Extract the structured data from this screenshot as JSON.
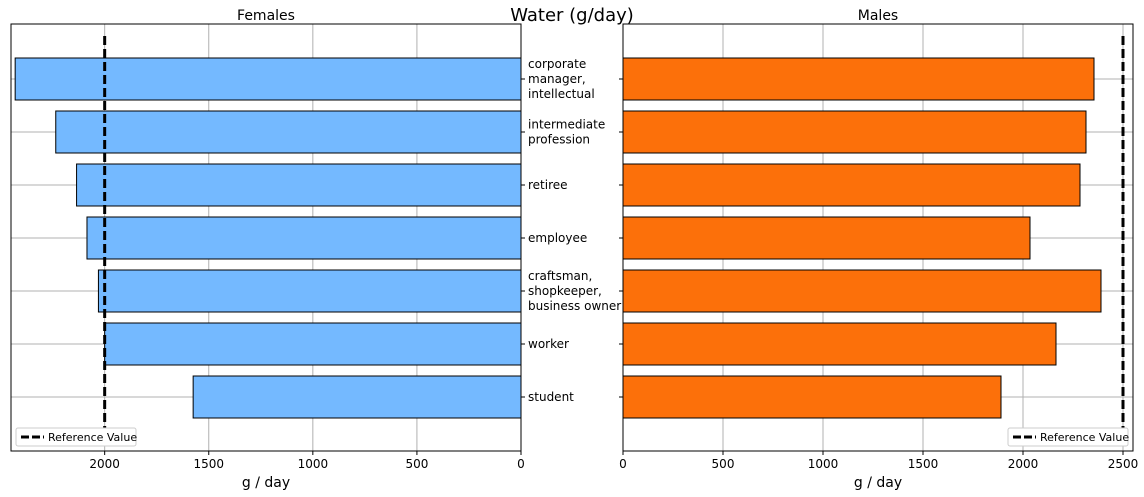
{
  "figure_title": "Water (g/day)",
  "chart_data": [
    {
      "type": "bar",
      "orientation": "horizontal",
      "title": "Females",
      "xlabel": "g / day",
      "ylabel": "",
      "x_inverted": true,
      "xlim": [
        0,
        2450
      ],
      "xticks": [
        0,
        500,
        1000,
        1500,
        2000
      ],
      "grid": true,
      "categories": [
        "corporate manager, intellectual",
        "intermediate profession",
        "retiree",
        "employee",
        "craftsman, shopkeeper, business owner",
        "worker",
        "student"
      ],
      "category_label_lines": [
        [
          "corporate",
          "manager,",
          "intellectual"
        ],
        [
          "intermediate",
          "profession"
        ],
        [
          "retiree"
        ],
        [
          "employee"
        ],
        [
          "craftsman,",
          "shopkeeper,",
          "business owner"
        ],
        [
          "worker"
        ],
        [
          "student"
        ]
      ],
      "values": [
        2430,
        2235,
        2135,
        2085,
        2030,
        2000,
        1575
      ],
      "bar_color": "#74b9ff",
      "reference_value": 2000,
      "legend": {
        "label": "Reference Value",
        "placement": "lower-left"
      }
    },
    {
      "type": "bar",
      "orientation": "horizontal",
      "title": "Males",
      "xlabel": "g / day",
      "ylabel": "",
      "x_inverted": false,
      "xlim": [
        0,
        2550
      ],
      "xticks": [
        0,
        500,
        1000,
        1500,
        2000,
        2500
      ],
      "grid": true,
      "categories": [
        "corporate manager, intellectual",
        "intermediate profession",
        "retiree",
        "employee",
        "craftsman, shopkeeper, business owner",
        "worker",
        "student"
      ],
      "values": [
        2355,
        2315,
        2285,
        2035,
        2390,
        2165,
        1890
      ],
      "bar_color": "#fc700a",
      "reference_value": 2500,
      "legend": {
        "label": "Reference Value",
        "placement": "lower-right"
      }
    }
  ]
}
